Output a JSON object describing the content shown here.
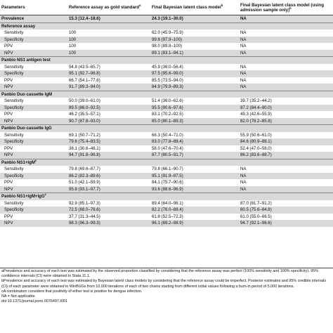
{
  "header": {
    "parameters": "Parameters",
    "col_reference": "Reference assay as gold standard",
    "col_reference_sup": "a",
    "col_final": "Final Bayesian latent class model",
    "col_final_sup": "b",
    "col_final_admission": "Final Bayesian latent class model (using admission sample only)",
    "col_final_admission_sup": "b"
  },
  "rows": [
    {
      "label": "Prevalence",
      "type": "section",
      "shade": true,
      "sep": false,
      "v1": "15.3 (12.4–18.6)",
      "v2": "24.3 (19.1–30.0)",
      "v3": "NA"
    },
    {
      "label": "Reference assay",
      "type": "section",
      "shade": true,
      "sep": true,
      "v1": "",
      "v2": "",
      "v3": ""
    },
    {
      "label": "Sensitivity",
      "type": "sub",
      "shade": false,
      "sep": false,
      "v1": "100",
      "v2": "62.0 (45.9–75.9)",
      "v3": "NA"
    },
    {
      "label": "Specificity",
      "type": "sub",
      "shade": true,
      "sep": false,
      "v1": "100",
      "v2": "99.6 (97.9–100)",
      "v3": "NA"
    },
    {
      "label": "PPV",
      "type": "sub",
      "shade": false,
      "sep": false,
      "v1": "100",
      "v2": "98.0 (89.8–100)",
      "v3": "NA"
    },
    {
      "label": "NPV",
      "type": "sub",
      "shade": true,
      "sep": false,
      "v1": "100",
      "v2": "89.1 (83.1–94.1)",
      "v3": "NA"
    },
    {
      "label": "Panbio NS1 antigen test",
      "type": "section",
      "shade": true,
      "sep": true,
      "v1": "",
      "v2": "",
      "v3": ""
    },
    {
      "label": "Sensitivity",
      "type": "sub",
      "shade": false,
      "sep": false,
      "v1": "54.8 (43.5–65.7)",
      "v2": "45.9 (36.0–56.4)",
      "v3": "NA"
    },
    {
      "label": "Specificity",
      "type": "sub",
      "shade": true,
      "sep": false,
      "v1": "95.1 (92.7–96.8)",
      "v2": "97.5 (95.6–99.0)",
      "v3": "NA"
    },
    {
      "label": "PPV",
      "type": "sub",
      "shade": false,
      "sep": false,
      "v1": "66.7 (54.1–77.6)",
      "v2": "85.5 (73.5–94.0)",
      "v3": "NA"
    },
    {
      "label": "NPV",
      "type": "sub",
      "shade": true,
      "sep": false,
      "v1": "91.7 (89.3–94.0)",
      "v2": "84.9 (79.9–89.3)",
      "v3": "NA"
    },
    {
      "label": "Panbio Duo cassette IgM",
      "type": "section",
      "shade": true,
      "sep": true,
      "v1": "",
      "v2": "",
      "v3": ""
    },
    {
      "label": "Sensitivity",
      "type": "sub",
      "shade": false,
      "sep": false,
      "v1": "50.0 (39.0–61.0)",
      "v2": "51.4 (36.0–62.6)",
      "v3": "39.7 (35.2–44.2)"
    },
    {
      "label": "Specificity",
      "type": "sub",
      "shade": true,
      "sep": false,
      "v1": "89.5 (86.0–92.5)",
      "v2": "95.5 (90.6–97.6)",
      "v3": "87.2 (84.4–90.0)"
    },
    {
      "label": "PPV",
      "type": "sub",
      "shade": false,
      "sep": false,
      "v1": "46.2 (35.5–57.1)",
      "v2": "83.1 (70.2–92.5)",
      "v3": "49.3 (42.6–55.9)"
    },
    {
      "label": "NPV",
      "type": "sub",
      "shade": true,
      "sep": false,
      "v1": "90.7 (87.8–93.0)",
      "v2": "85.0 (80.1–89.3)",
      "v3": "82.0 (78.2–85.8)"
    },
    {
      "label": "Panbio Duo cassette IgG",
      "type": "section",
      "shade": true,
      "sep": true,
      "v1": "",
      "v2": "",
      "v3": ""
    },
    {
      "label": "Sensitivity",
      "type": "sub",
      "shade": false,
      "sep": false,
      "v1": "69.1 (50.7–71.2)",
      "v2": "68.3 (50.4–71.0)",
      "v3": "55.9 (50.6–61.0)"
    },
    {
      "label": "Specificity",
      "type": "sub",
      "shade": true,
      "sep": false,
      "v1": "79.6 (75.4–83.5)",
      "v2": "83.0 (77.8–88.4)",
      "v3": "84.6 (80.9–88.1)"
    },
    {
      "label": "PPV",
      "type": "sub",
      "shade": false,
      "sep": false,
      "v1": "38.1 (30.6–46.1)",
      "v2": "58.0 (47.6–70.4)",
      "v3": "52.4 (47.0–58.0)"
    },
    {
      "label": "NPV",
      "type": "sub",
      "shade": true,
      "sep": false,
      "v1": "94.7 (91.8–96.8)",
      "v2": "87.7 (80.5–91.7)",
      "v3": "86.2 (83.6–88.7)"
    },
    {
      "label": "Panbio NS1+IgM",
      "label_sup": "c",
      "type": "section",
      "shade": true,
      "sep": true,
      "v1": "",
      "v2": "",
      "v3": ""
    },
    {
      "label": "Sensitivity",
      "type": "sub",
      "shade": false,
      "sep": false,
      "v1": "79.8 (69.6–87.7)",
      "v2": "79.8 (66.1–90.7)",
      "v3": "NA"
    },
    {
      "label": "Specificity",
      "type": "sub",
      "shade": true,
      "sep": false,
      "v1": "86.2 (82.3–89.6)",
      "v2": "95.1 (91.9–97.5)",
      "v3": "NA"
    },
    {
      "label": "PPV",
      "type": "sub",
      "shade": false,
      "sep": false,
      "v1": "51.0 (42.1–59.9)",
      "v2": "84.1 (75.7–90.6)",
      "v3": "NA"
    },
    {
      "label": "NPV",
      "type": "sub",
      "shade": true,
      "sep": false,
      "v1": "95.8 (93.1–97.7)",
      "v2": "93.6 (88.6–96.9)",
      "v3": "NA"
    },
    {
      "label": "Panbio NS1+IgM+IgG",
      "label_sup": "c",
      "type": "section",
      "shade": true,
      "sep": true,
      "v1": "",
      "v2": "",
      "v3": ""
    },
    {
      "label": "Sensitivity",
      "type": "sub",
      "shade": false,
      "sep": false,
      "v1": "92.9 (85.1–97.3)",
      "v2": "89.4 (84.0–96.1)",
      "v3": "87.0 (81.7–91.2)"
    },
    {
      "label": "Specificity",
      "type": "sub",
      "shade": true,
      "sep": false,
      "v1": "72.5 (68.0–76.6)",
      "v2": "82.2 (76.0–88.4)",
      "v3": "80.5 (75.6–84.8)"
    },
    {
      "label": "PPV",
      "type": "sub",
      "shade": false,
      "sep": false,
      "v1": "37.7 (31.3–44.5)",
      "v2": "61.8 (52.5–72.3)",
      "v3": "61.0 (55.0–66.5)"
    },
    {
      "label": "NPV",
      "type": "sub",
      "shade": true,
      "sep": false,
      "v1": "98.3 (96.3–99.3)",
      "v2": "96.1 (89.2–98.9)",
      "v3": "94.7 (92.1–96.6)"
    }
  ],
  "footnotes": [
    "aPrevalence and accuracy of each test was estimated by the observed proportion classified by considering that the reference assay was perfect (100% sensitivity and 100% specificity). 95% confidence intervals (CI) were obtained in Stata 11.1.",
    "bPrevalence and accuracy of each test was estimated by Bayesian latent class models by considering that the reference assay could be imperfect. Posterior estimates and 95% credible intervals (CI) of each parameter were obtained in WinBUGs from 10,000 iterations of each of two chains starting from different initial values following a burn-in period of 5,000 iterations.",
    "cA combination considers that positivity of either test is positive for dengue infection.",
    "NA = Not applicable.",
    "doi:10.1371/journal.pone.0076497.t001"
  ]
}
